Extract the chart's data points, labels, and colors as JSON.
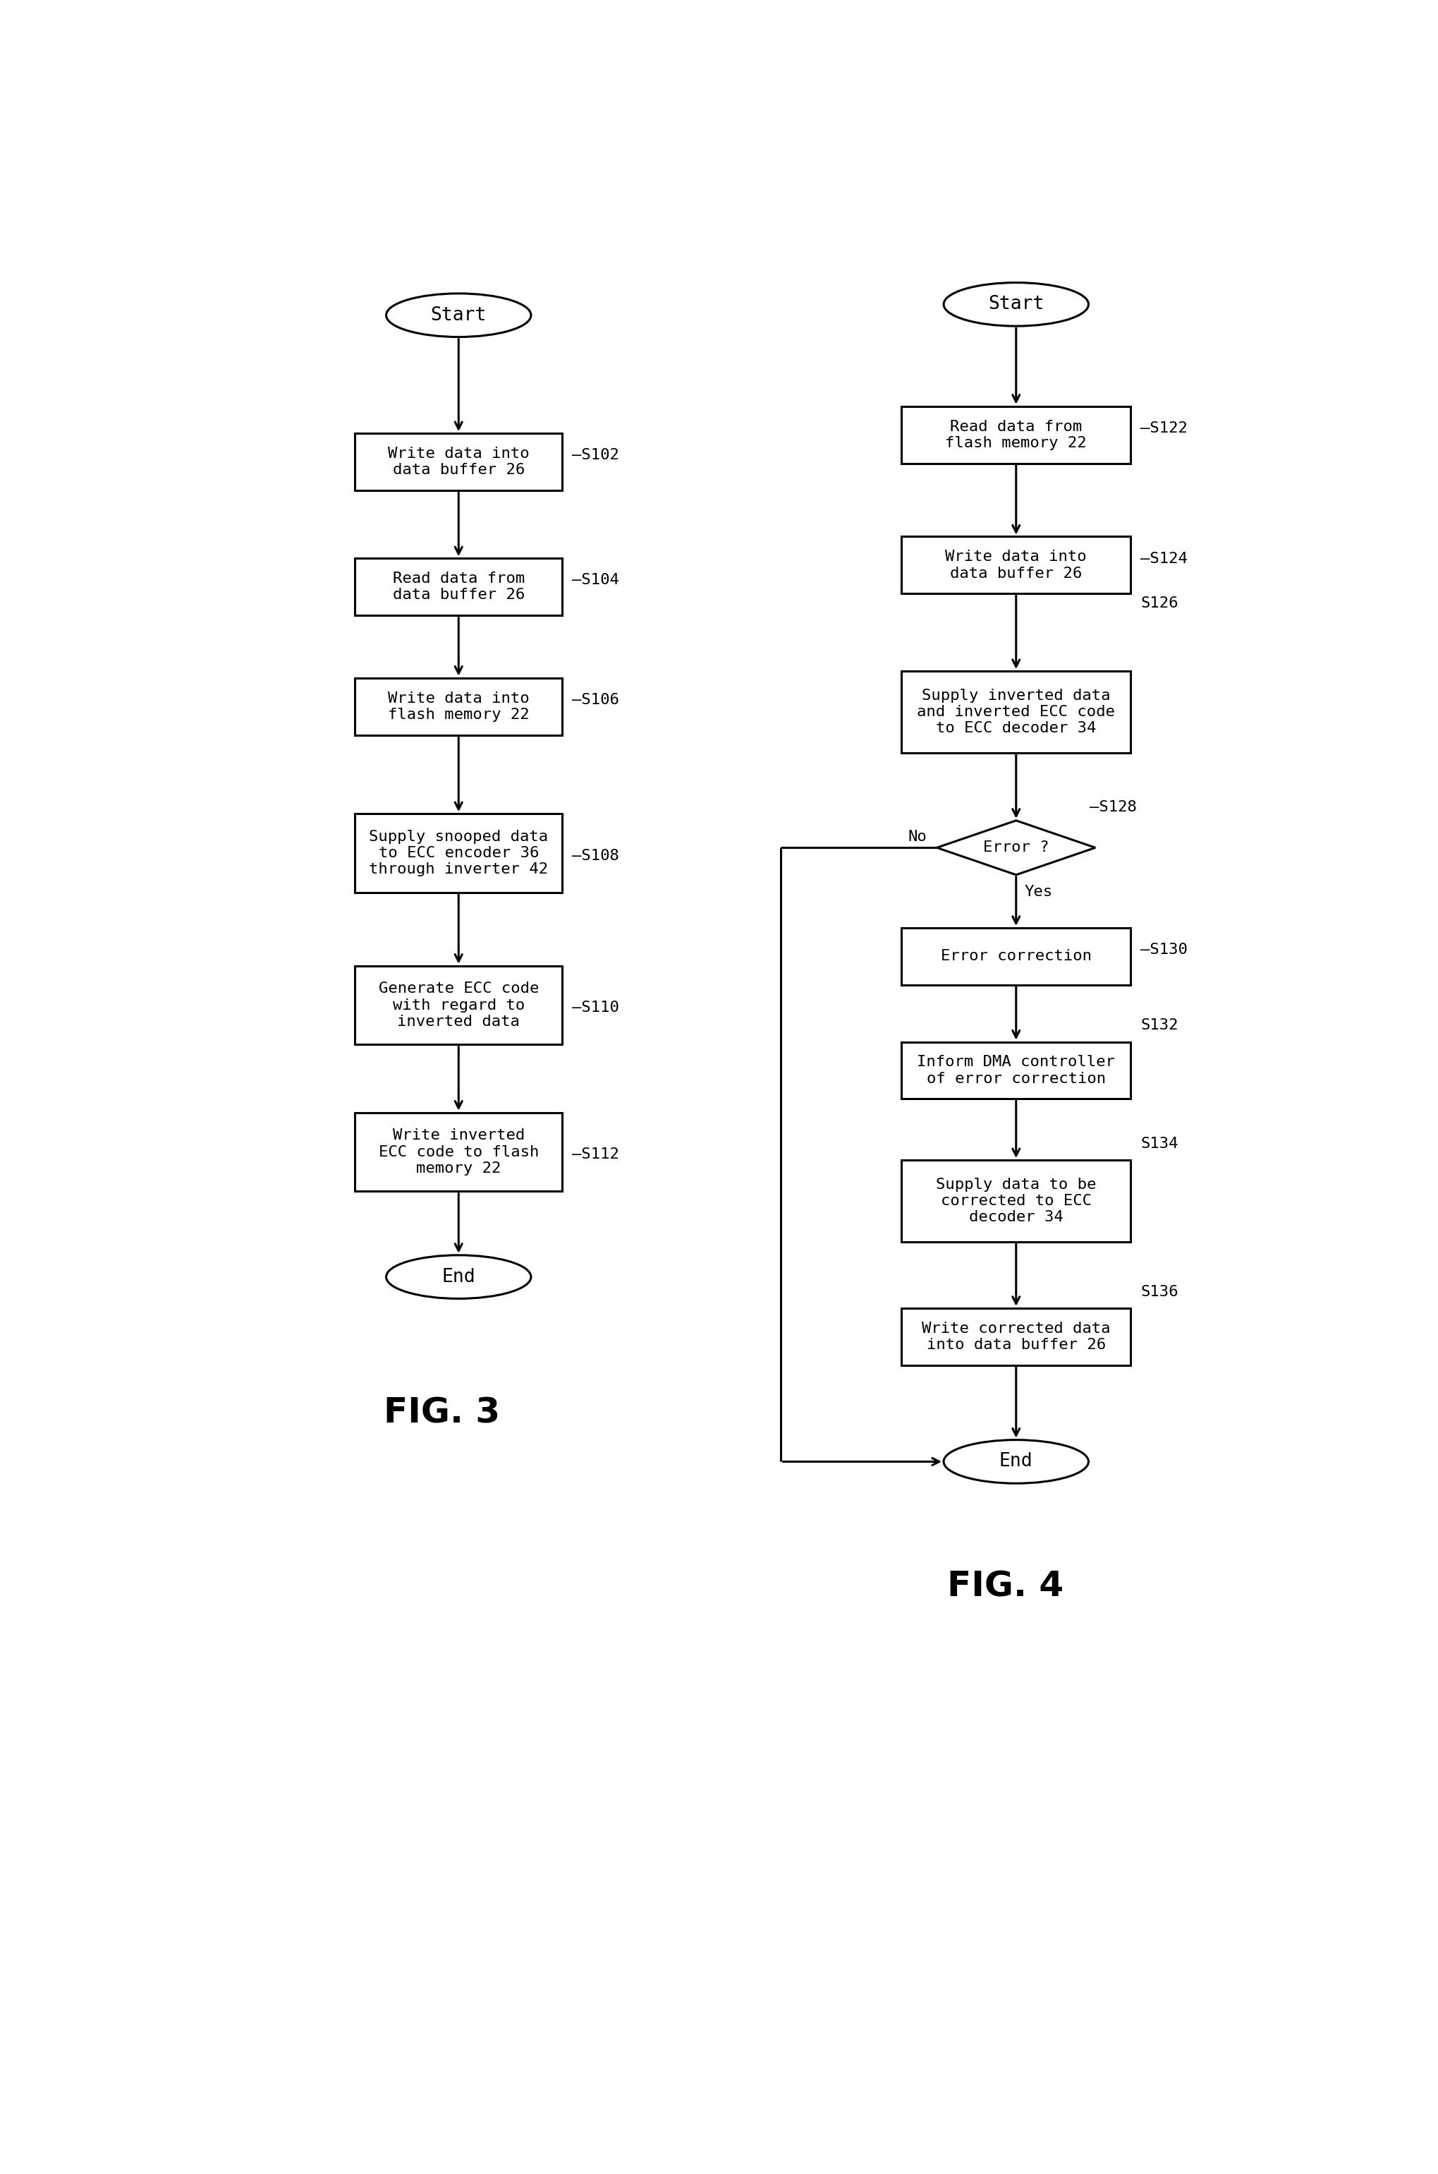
{
  "fig3": {
    "title": "FIG. 3",
    "start_label": "Start",
    "end_label": "End"
  },
  "fig4": {
    "title": "FIG. 4",
    "start_label": "Start",
    "end_label": "End",
    "no_label": "No",
    "yes_label": "Yes"
  },
  "bg_color": "#ffffff",
  "font_size": 16,
  "step_font_size": 16,
  "title_font_size": 36,
  "lw": 2.2
}
